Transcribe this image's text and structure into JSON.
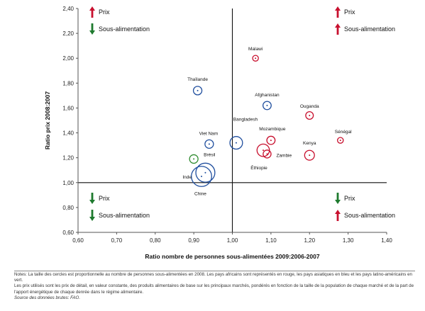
{
  "chart_data": {
    "type": "scatter",
    "xlabel": "Ratio nombre de personnes sous-alimentées 2009:2006-2007",
    "ylabel": "Ratio prix 2008:2007",
    "xlim": [
      0.6,
      1.4
    ],
    "ylim": [
      0.6,
      2.4
    ],
    "xticks": [
      "0,60",
      "0,70",
      "0,80",
      "0,90",
      "1,00",
      "1,10",
      "1,20",
      "1,30",
      "1,40"
    ],
    "yticks": [
      "0,60",
      "0,80",
      "1,00",
      "1,20",
      "1,40",
      "1,60",
      "1,80",
      "2,00",
      "2,20",
      "2,40"
    ],
    "reference_lines": {
      "x": 1.0,
      "y": 1.0
    },
    "colors": {
      "africa": "#c8102e",
      "asia": "#1f4e9e",
      "latin_america": "#2e8b2e",
      "arrow_up": "#c8102e",
      "arrow_down": "#1e7a2e"
    },
    "quadrant_labels": [
      {
        "corner": "top-left",
        "items": [
          {
            "arrow": "up",
            "label": "Prix"
          },
          {
            "arrow": "down",
            "label": "Sous-alimentation"
          }
        ]
      },
      {
        "corner": "top-right",
        "items": [
          {
            "arrow": "up",
            "label": "Prix"
          },
          {
            "arrow": "up",
            "label": "Sous-alimentation"
          }
        ]
      },
      {
        "corner": "bottom-left",
        "items": [
          {
            "arrow": "down",
            "label": "Prix"
          },
          {
            "arrow": "down",
            "label": "Sous-alimentation"
          }
        ]
      },
      {
        "corner": "bottom-right",
        "items": [
          {
            "arrow": "down",
            "label": "Prix"
          },
          {
            "arrow": "up",
            "label": "Sous-alimentation"
          }
        ]
      }
    ],
    "points": [
      {
        "name": "Malawi",
        "x": 1.06,
        "y": 2.0,
        "size": 0.7,
        "region": "africa"
      },
      {
        "name": "Thaïlande",
        "x": 0.91,
        "y": 1.74,
        "size": 1.5,
        "region": "asia"
      },
      {
        "name": "Afghanistan",
        "x": 1.09,
        "y": 1.62,
        "size": 1.4,
        "region": "asia"
      },
      {
        "name": "Ouganda",
        "x": 1.2,
        "y": 1.54,
        "size": 1.2,
        "region": "africa"
      },
      {
        "name": "Sénégal",
        "x": 1.28,
        "y": 1.34,
        "size": 0.7,
        "region": "africa"
      },
      {
        "name": "Bangladesh",
        "x": 1.01,
        "y": 1.32,
        "size": 3.3,
        "region": "asia"
      },
      {
        "name": "Mozambique",
        "x": 1.1,
        "y": 1.34,
        "size": 1.4,
        "region": "africa"
      },
      {
        "name": "Viet Nam",
        "x": 0.94,
        "y": 1.31,
        "size": 1.5,
        "region": "asia"
      },
      {
        "name": "Éthiopie",
        "x": 1.08,
        "y": 1.26,
        "size": 3.2,
        "region": "africa"
      },
      {
        "name": "Zambie",
        "x": 1.09,
        "y": 1.23,
        "size": 1.3,
        "region": "africa"
      },
      {
        "name": "Kenya",
        "x": 1.2,
        "y": 1.22,
        "size": 2.0,
        "region": "africa"
      },
      {
        "name": "Brésil",
        "x": 0.9,
        "y": 1.19,
        "size": 1.5,
        "region": "latin_america"
      },
      {
        "name": "Inde",
        "x": 0.92,
        "y": 1.05,
        "size": 8.5,
        "region": "asia"
      },
      {
        "name": "Chine",
        "x": 0.93,
        "y": 1.08,
        "size": 7.5,
        "region": "asia"
      }
    ]
  },
  "notes": {
    "line1": "Notes: La taille des cercles est proportionnelle au nombre de personnes sous-alimentées en 2008. Les pays africains sont représentés en rouge, les pays asiatiques en bleu et les pays latino-américains en vert.",
    "line2": "Les prix utilisés sont les prix de détail, en valeur constante, des produits alimentaires de base sur les principaux marchés, pondérés en fonction de la taille de la population de chaque marché et de la part de l'apport énergétique de chaque denrée dans le régime alimentaire.",
    "line3": "Source des données brutes: FAO."
  }
}
